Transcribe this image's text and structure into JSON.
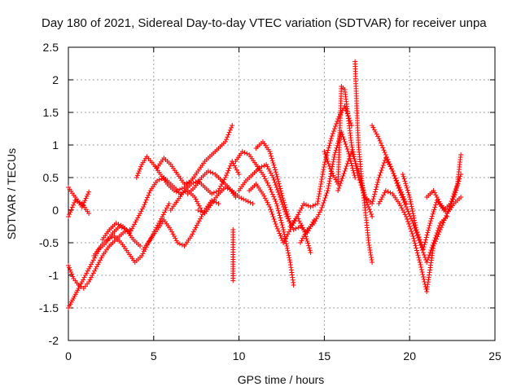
{
  "chart_data": {
    "type": "scatter",
    "title": "Day 180 of 2021, Sidereal Day-to-day VTEC variation (SDTVAR) for receiver unpa",
    "xlabel": "GPS time / hours",
    "ylabel": "SDTVAR / TECUs",
    "xlim": [
      0,
      25
    ],
    "ylim": [
      -2,
      2.5
    ],
    "x_ticks": [
      "0",
      "5",
      "10",
      "15",
      "20",
      "25"
    ],
    "y_ticks": [
      "-2",
      "-1.5",
      "-1",
      "-0.5",
      "0",
      "0.5",
      "1",
      "1.5",
      "2",
      "2.5"
    ],
    "grid": true,
    "marker": "+",
    "series": [
      {
        "name": "SDTVAR",
        "color": "#ff0000",
        "tracks": [
          {
            "x": [
              0.0,
              0.4,
              0.8,
              1.2
            ],
            "y": [
              0.35,
              0.2,
              0.05,
              0.28
            ]
          },
          {
            "x": [
              0.0,
              0.4,
              0.8,
              1.2
            ],
            "y": [
              -0.1,
              0.15,
              0.1,
              -0.05
            ]
          },
          {
            "x": [
              0.0,
              0.3,
              0.6,
              1.0,
              1.4,
              1.8,
              2.2,
              2.6,
              3.0,
              3.4,
              3.8,
              4.2
            ],
            "y": [
              -1.5,
              -1.35,
              -1.2,
              -1.0,
              -0.8,
              -0.6,
              -0.5,
              -0.35,
              -0.25,
              -0.3,
              -0.45,
              -0.55
            ]
          },
          {
            "x": [
              0.0,
              0.3,
              0.6,
              0.9,
              1.2,
              1.6,
              2.0,
              2.4,
              2.8,
              3.2,
              3.6
            ],
            "y": [
              -0.85,
              -1.05,
              -1.15,
              -1.2,
              -1.1,
              -0.9,
              -0.7,
              -0.55,
              -0.45,
              -0.35,
              -0.3
            ]
          },
          {
            "x": [
              1.5,
              1.9,
              2.3,
              2.7,
              3.1,
              3.5,
              3.9,
              4.3,
              4.7,
              5.1,
              5.5,
              5.9
            ],
            "y": [
              -0.7,
              -0.55,
              -0.45,
              -0.4,
              -0.5,
              -0.65,
              -0.8,
              -0.7,
              -0.5,
              -0.3,
              -0.1,
              0.1
            ]
          },
          {
            "x": [
              2.0,
              2.4,
              2.8,
              3.2,
              3.6,
              4.0,
              4.4,
              4.8,
              5.2,
              5.6,
              6.0,
              6.4,
              6.8,
              7.2
            ],
            "y": [
              -0.45,
              -0.3,
              -0.2,
              -0.25,
              -0.35,
              -0.15,
              0.05,
              0.3,
              0.45,
              0.5,
              0.4,
              0.3,
              0.35,
              0.45
            ]
          },
          {
            "x": [
              4.0,
              4.3,
              4.6,
              5.0,
              5.4,
              5.8,
              6.2,
              6.6,
              7.0,
              7.4,
              7.8
            ],
            "y": [
              0.5,
              0.7,
              0.82,
              0.7,
              0.55,
              0.4,
              0.3,
              0.25,
              0.3,
              0.2,
              0.0
            ]
          },
          {
            "x": [
              4.4,
              4.8,
              5.2,
              5.6,
              6.0,
              6.4,
              6.8,
              7.2,
              7.6,
              8.0,
              8.4,
              8.8
            ],
            "y": [
              -0.6,
              -0.45,
              -0.3,
              -0.15,
              -0.3,
              -0.5,
              -0.55,
              -0.4,
              -0.2,
              0.0,
              0.15,
              0.1
            ]
          },
          {
            "x": [
              5.2,
              5.6,
              6.0,
              6.4,
              6.8,
              7.2,
              7.6,
              8.0,
              8.4,
              8.8,
              9.2,
              9.6
            ],
            "y": [
              0.65,
              0.8,
              0.7,
              0.55,
              0.4,
              0.45,
              0.6,
              0.75,
              0.85,
              0.95,
              1.05,
              1.3
            ]
          },
          {
            "x": [
              6.0,
              6.4,
              6.8,
              7.2,
              7.6,
              8.0,
              8.4,
              8.8,
              9.2,
              9.6,
              10.0
            ],
            "y": [
              0.0,
              0.15,
              0.3,
              0.4,
              0.45,
              0.35,
              0.25,
              0.3,
              0.5,
              0.75,
              0.55
            ]
          },
          {
            "x": [
              7.0,
              7.4,
              7.8,
              8.2,
              8.6,
              9.0,
              9.4,
              9.8
            ],
            "y": [
              0.25,
              0.35,
              0.5,
              0.6,
              0.55,
              0.45,
              0.35,
              0.2
            ]
          },
          {
            "x": [
              7.6,
              8.0,
              8.4,
              8.8,
              9.2,
              9.6,
              10.0,
              10.4,
              10.8
            ],
            "y": [
              0.0,
              -0.05,
              0.1,
              0.25,
              0.35,
              0.3,
              0.2,
              0.15,
              0.1
            ]
          },
          {
            "x": [
              9.65,
              9.65,
              9.65
            ],
            "y": [
              -0.3,
              -0.72,
              -1.08
            ]
          },
          {
            "x": [
              9.8,
              10.2,
              10.6,
              11.0,
              11.4,
              11.8,
              12.2,
              12.6,
              13.0,
              13.2
            ],
            "y": [
              0.75,
              0.9,
              0.85,
              0.7,
              0.55,
              0.35,
              0.1,
              -0.3,
              -0.8,
              -1.15
            ]
          },
          {
            "x": [
              10.0,
              10.4,
              10.8,
              11.2,
              11.6,
              12.0,
              12.4,
              12.8,
              13.2,
              13.6,
              14.0,
              14.4
            ],
            "y": [
              0.3,
              0.45,
              0.55,
              0.65,
              0.7,
              0.5,
              0.2,
              -0.1,
              -0.3,
              -0.25,
              -0.35,
              -0.15
            ]
          },
          {
            "x": [
              10.6,
              11.0,
              11.4,
              11.8,
              12.2,
              12.6,
              13.0,
              13.4,
              13.8,
              14.2
            ],
            "y": [
              0.3,
              0.4,
              0.25,
              0.05,
              -0.25,
              -0.5,
              -0.3,
              -0.1,
              -0.3,
              -0.65
            ]
          },
          {
            "x": [
              11.0,
              11.4,
              11.8,
              12.2,
              12.6,
              13.0
            ],
            "y": [
              0.95,
              1.05,
              0.9,
              0.55,
              0.15,
              -0.2
            ]
          },
          {
            "x": [
              13.0,
              13.4,
              13.8,
              14.2,
              14.6,
              15.0,
              15.4,
              15.8,
              16.2,
              16.6
            ],
            "y": [
              -0.25,
              -0.1,
              0.1,
              0.05,
              0.1,
              0.7,
              1.1,
              1.4,
              1.6,
              1.3
            ]
          },
          {
            "x": [
              13.6,
              14.0,
              14.4,
              14.8,
              15.2,
              15.6,
              16.0,
              16.4,
              16.8
            ],
            "y": [
              -0.5,
              -0.3,
              -0.2,
              0.0,
              0.3,
              0.85,
              1.2,
              0.9,
              0.5
            ]
          },
          {
            "x": [
              15.0,
              15.4,
              15.8,
              16.0,
              16.2,
              16.6,
              17.0,
              17.4,
              17.8
            ],
            "y": [
              0.9,
              0.6,
              0.4,
              1.9,
              1.85,
              1.0,
              0.5,
              0.2,
              -0.1
            ]
          },
          {
            "x": [
              16.8,
              16.9,
              17.0,
              17.2,
              17.4,
              17.6,
              17.8
            ],
            "y": [
              2.28,
              1.6,
              1.0,
              0.45,
              0.0,
              -0.5,
              -0.8
            ]
          },
          {
            "x": [
              15.8,
              16.2,
              16.6,
              17.0,
              17.4,
              17.8,
              18.2,
              18.6,
              19.0,
              19.4,
              19.8
            ],
            "y": [
              0.3,
              0.6,
              0.9,
              0.6,
              0.2,
              0.1,
              0.5,
              0.8,
              0.6,
              0.35,
              0.1
            ]
          },
          {
            "x": [
              17.8,
              18.2,
              18.6,
              19.0,
              19.4,
              19.8,
              20.2,
              20.6,
              21.0,
              21.4,
              21.8,
              22.2
            ],
            "y": [
              1.3,
              1.1,
              0.85,
              0.6,
              0.3,
              0.05,
              -0.2,
              -0.5,
              -0.8,
              -0.5,
              -0.2,
              -0.1
            ]
          },
          {
            "x": [
              18.2,
              18.6,
              19.0,
              19.4,
              19.8,
              20.2,
              20.6,
              21.0,
              21.4,
              21.8,
              22.2,
              22.6,
              23.0
            ],
            "y": [
              0.1,
              0.3,
              0.25,
              0.1,
              -0.1,
              -0.4,
              -0.8,
              -1.25,
              -0.55,
              -0.3,
              -0.05,
              0.2,
              0.55
            ]
          },
          {
            "x": [
              19.6,
              20.0,
              20.4,
              20.8,
              21.2,
              21.6,
              22.0,
              22.4,
              22.8,
              23.0
            ],
            "y": [
              0.55,
              0.2,
              -0.3,
              -0.6,
              -0.2,
              0.15,
              0.0,
              0.1,
              0.4,
              0.85
            ]
          },
          {
            "x": [
              21.0,
              21.4,
              21.8,
              22.2,
              22.6,
              23.0
            ],
            "y": [
              0.2,
              0.3,
              0.1,
              -0.05,
              0.1,
              0.2
            ]
          }
        ]
      }
    ]
  }
}
